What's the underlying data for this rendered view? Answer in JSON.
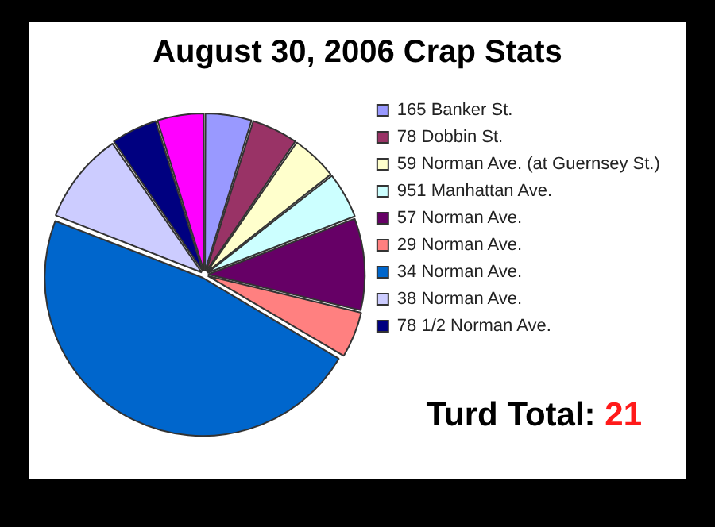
{
  "chart_data": {
    "type": "pie",
    "title": "August 30, 2006 Crap Stats",
    "categories": [
      "165 Banker St.",
      "78 Dobbin St.",
      "59 Norman Ave. (at Guernsey St.)",
      "951 Manhattan Ave.",
      "57 Norman Ave.",
      "29 Norman Ave.",
      "34 Norman Ave.",
      "38 Norman Ave.",
      "78 1/2 Norman Ave.",
      null
    ],
    "values": [
      4.8,
      4.8,
      4.8,
      4.8,
      9.5,
      4.8,
      47.4,
      9.5,
      4.8,
      4.8
    ],
    "colors": [
      "#9999ff",
      "#993366",
      "#ffffcc",
      "#ccffff",
      "#660066",
      "#ff8080",
      "#0066cc",
      "#ccccff",
      "#000080",
      "#ff00ff"
    ],
    "legend": "right",
    "annotations": [
      "Turd Total: 21"
    ]
  }
}
